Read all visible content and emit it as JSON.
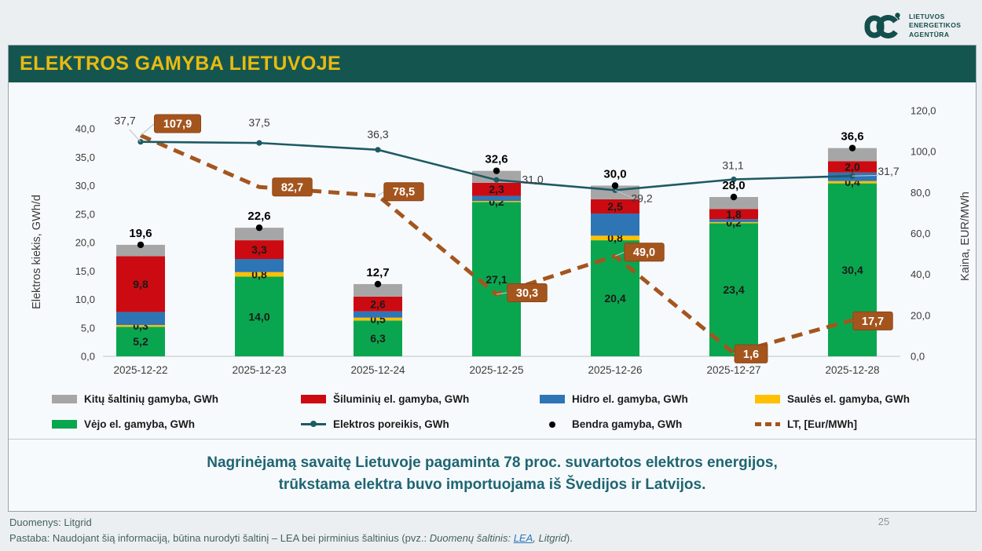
{
  "logo": {
    "lines": [
      "LIETUVOS",
      "ENERGETIKOS",
      "AGENTŪRA"
    ]
  },
  "header": {
    "title": "ELEKTROS GAMYBA LIETUVOJE"
  },
  "chart_data": {
    "type": "bar",
    "subtype": "stacked-bars-with-lines",
    "categories": [
      "2025-12-22",
      "2025-12-23",
      "2025-12-24",
      "2025-12-25",
      "2025-12-26",
      "2025-12-27",
      "2025-12-28"
    ],
    "series": [
      {
        "name": "Vėjo el. gamyba, GWh",
        "color": "#0AA64F",
        "values": [
          5.2,
          14.0,
          6.3,
          27.1,
          20.4,
          23.4,
          30.4
        ],
        "labels_visible": true
      },
      {
        "name": "Saulės el. gamyba, GWh",
        "color": "#FFC002",
        "values": [
          0.3,
          0.8,
          0.5,
          0.2,
          0.8,
          0.2,
          0.4
        ],
        "labels_visible": true
      },
      {
        "name": "Hidro el. gamyba, GWh",
        "color": "#2E75B6",
        "values": [
          2.3,
          2.3,
          1.1,
          0.9,
          3.9,
          0.5,
          1.5
        ],
        "labels_visible": false
      },
      {
        "name": "Šiluminių el. gamyba, GWh",
        "color": "#CC0A11",
        "values": [
          9.8,
          3.3,
          2.6,
          2.3,
          2.5,
          1.8,
          2.0
        ],
        "labels_visible": true
      },
      {
        "name": "Kitų šaltinių gamyba,  GWh",
        "color": "#A6A6A6",
        "values": [
          2.0,
          2.2,
          2.2,
          2.1,
          2.4,
          2.1,
          2.3
        ],
        "labels_visible": false
      }
    ],
    "totals": {
      "name": "Bendra gamyba, GWh",
      "marker_color": "#000000",
      "values": [
        19.6,
        22.6,
        12.7,
        32.6,
        30.0,
        28.0,
        36.6
      ]
    },
    "demand_line": {
      "name": "Elektros poreikis, GWh",
      "color": "#1E5A64",
      "values": [
        37.7,
        37.5,
        36.3,
        31.0,
        29.2,
        31.1,
        31.7
      ]
    },
    "price_line": {
      "name": "LT, [Eur/MWh]",
      "color": "#A4551E",
      "axis": "right",
      "values": [
        107.9,
        82.7,
        78.5,
        30.3,
        49.0,
        1.6,
        17.7
      ]
    },
    "ylabel_left": "Elektros kiekis, GWh/d",
    "ylabel_right": "Kaina, EUR/MWh",
    "y_left": {
      "min": 0,
      "max": 40,
      "step": 5
    },
    "y_right": {
      "min": 0,
      "max": 120,
      "step": 20
    },
    "number_format": "comma-decimal",
    "grid": false,
    "legend_position": "bottom"
  },
  "legend": {
    "items": [
      {
        "label": "Kitų šaltinių gamyba,  GWh",
        "marker": "swatch",
        "color": "#A6A6A6"
      },
      {
        "label": "Šiluminių el. gamyba, GWh",
        "marker": "swatch",
        "color": "#CC0A11"
      },
      {
        "label": "Hidro el. gamyba, GWh",
        "marker": "swatch",
        "color": "#2E75B6"
      },
      {
        "label": "Saulės el. gamyba, GWh",
        "marker": "swatch",
        "color": "#FFC002"
      },
      {
        "label": "Vėjo el. gamyba, GWh",
        "marker": "swatch",
        "color": "#0AA64F"
      },
      {
        "label": "Elektros poreikis, GWh",
        "marker": "line-dot",
        "color": "#1E5A64"
      },
      {
        "label": "Bendra gamyba, GWh",
        "marker": "dot",
        "color": "#000000"
      },
      {
        "label": "LT, [Eur/MWh]",
        "marker": "dashes",
        "color": "#A4551E"
      }
    ]
  },
  "summary": {
    "line1": "Nagrinėjamą savaitę Lietuvoje pagaminta 78 proc. suvartotos elektros energijos,",
    "line2": "trūkstama elektra buvo importuojama iš Švedijos ir Latvijos."
  },
  "footer": {
    "source": "Duomenys: Litgrid",
    "note_prefix": "Pastaba: Naudojant šią informaciją, būtina nurodyti šaltinį – LEA bei pirminius šaltinius (pvz.: ",
    "note_italic": "Duomenų šaltinis: ",
    "note_link": "LEA",
    "note_italic2": ", Litgrid",
    "note_suffix": ")."
  },
  "page_number": "25"
}
